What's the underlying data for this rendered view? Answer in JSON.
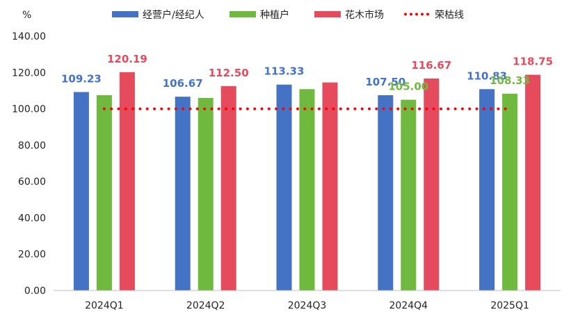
{
  "chart_data": {
    "type": "bar",
    "unit_label": "%",
    "categories": [
      "2024Q1",
      "2024Q2",
      "2024Q3",
      "2024Q4",
      "2025Q1"
    ],
    "series": [
      {
        "name": "经营户/经纪人",
        "color": "#4472C4",
        "values": [
          109.23,
          106.67,
          113.33,
          107.5,
          110.83
        ],
        "labels": [
          "109.23",
          "106.67",
          "113.33",
          "107.50",
          "110.83"
        ]
      },
      {
        "name": "种植户",
        "color": "#70B93F",
        "values": [
          107.5,
          106.0,
          110.83,
          105.0,
          108.33
        ],
        "labels": [
          "",
          "",
          "",
          "105.00",
          "108.33"
        ]
      },
      {
        "name": "花木市场",
        "color": "#E64A5D",
        "values": [
          120.19,
          112.5,
          114.5,
          116.67,
          118.75
        ],
        "labels": [
          "120.19",
          "112.50",
          "",
          "116.67",
          "118.75"
        ]
      }
    ],
    "reference_line": {
      "name": "荣枯线",
      "value": 100,
      "color": "#FF0000",
      "style": "dotted"
    },
    "ylim": [
      0,
      140
    ],
    "y_ticks": [
      "0.00",
      "20.00",
      "40.00",
      "60.00",
      "80.00",
      "100.00",
      "120.00",
      "140.00"
    ],
    "legend_position": "top",
    "grid": false
  }
}
